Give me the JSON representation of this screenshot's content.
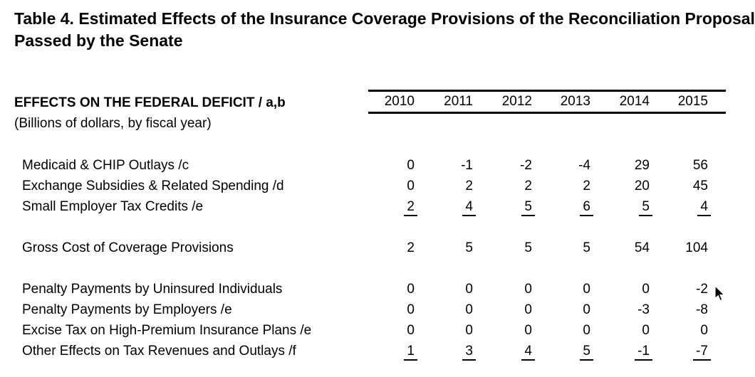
{
  "page": {
    "background_color": "#ffffff",
    "text_color": "#000000",
    "rule_color": "#000000"
  },
  "title": {
    "line1": "Table 4. Estimated Effects of the Insurance Coverage Provisions of the Reconciliation Proposal",
    "line2": "Passed by the Senate"
  },
  "header": {
    "section_label": "EFFECTS ON THE FEDERAL DEFICIT / a,b",
    "subtitle": "(Billions of dollars, by fiscal year)"
  },
  "table": {
    "columns": [
      "2010",
      "2011",
      "2012",
      "2013",
      "2014",
      "2015"
    ],
    "rows": [
      {
        "label": "Medicaid & CHIP Outlays /c",
        "values": [
          "0",
          "-1",
          "-2",
          "-4",
          "29",
          "56"
        ],
        "underline": false
      },
      {
        "label": "Exchange Subsidies & Related Spending /d",
        "values": [
          "0",
          "2",
          "2",
          "2",
          "20",
          "45"
        ],
        "underline": false
      },
      {
        "label": "Small Employer Tax Credits /e",
        "values": [
          "2",
          "4",
          "5",
          "6",
          "5",
          "4"
        ],
        "underline": true
      },
      {
        "spacer": true
      },
      {
        "label": "Gross Cost of Coverage Provisions",
        "values": [
          "2",
          "5",
          "5",
          "5",
          "54",
          "104"
        ],
        "underline": false
      },
      {
        "spacer": true
      },
      {
        "label": "Penalty Payments by Uninsured Individuals",
        "values": [
          "0",
          "0",
          "0",
          "0",
          "0",
          "-2"
        ],
        "underline": false
      },
      {
        "label": "Penalty Payments by Employers /e",
        "values": [
          "0",
          "0",
          "0",
          "0",
          "-3",
          "-8"
        ],
        "underline": false
      },
      {
        "label": "Excise Tax on High-Premium Insurance Plans /e",
        "values": [
          "0",
          "0",
          "0",
          "0",
          "0",
          "0"
        ],
        "underline": false
      },
      {
        "label": "Other Effects on Tax Revenues and Outlays /f",
        "values": [
          "1",
          "3",
          "4",
          "5",
          "-1",
          "-7"
        ],
        "underline": true
      }
    ]
  },
  "cursor": {
    "icon": "arrow-pointer-icon"
  }
}
